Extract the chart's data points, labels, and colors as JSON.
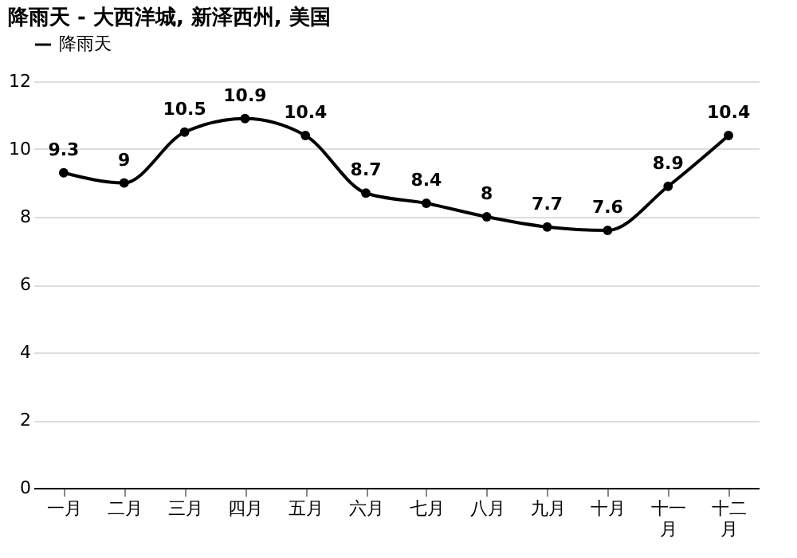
{
  "chart_data": {
    "type": "line",
    "title": "降雨天 - 大西洋城, 新泽西州, 美国",
    "categories": [
      "一月",
      "二月",
      "三月",
      "四月",
      "五月",
      "六月",
      "七月",
      "八月",
      "九月",
      "十月",
      "十一月",
      "十二月"
    ],
    "series": [
      {
        "name": "降雨天",
        "color": "#000000",
        "values": [
          9.3,
          9,
          10.5,
          10.9,
          10.4,
          8.7,
          8.4,
          8,
          7.7,
          7.6,
          8.9,
          10.4
        ]
      }
    ],
    "ylim": [
      0,
      12
    ],
    "yticks": [
      0,
      2,
      4,
      6,
      8,
      10,
      12
    ],
    "grid": "y",
    "legend": "top left",
    "marker": "circle",
    "line_style": "solid",
    "data_labels": true
  }
}
